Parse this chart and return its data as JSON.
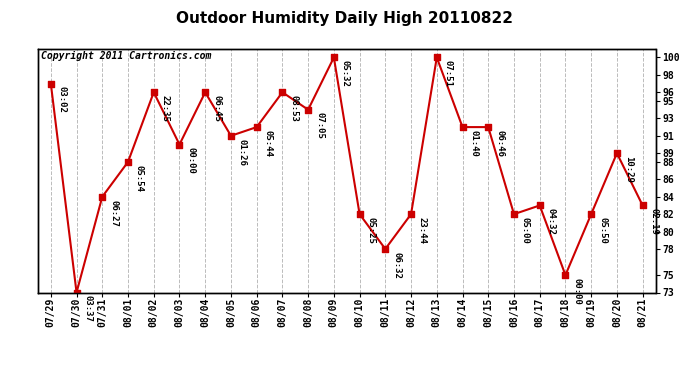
{
  "title": "Outdoor Humidity Daily High 20110822",
  "copyright": "Copyright 2011 Cartronics.com",
  "dates": [
    "07/29",
    "07/30",
    "07/31",
    "08/01",
    "08/02",
    "08/03",
    "08/04",
    "08/05",
    "08/06",
    "08/07",
    "08/08",
    "08/09",
    "08/10",
    "08/11",
    "08/12",
    "08/13",
    "08/14",
    "08/15",
    "08/16",
    "08/17",
    "08/18",
    "08/19",
    "08/20",
    "08/21"
  ],
  "values": [
    97,
    73,
    84,
    88,
    96,
    90,
    96,
    91,
    92,
    96,
    94,
    100,
    82,
    78,
    82,
    100,
    92,
    92,
    82,
    83,
    75,
    82,
    89,
    83
  ],
  "labels": [
    "03:02",
    "03:37",
    "06:27",
    "05:54",
    "22:35",
    "00:00",
    "06:45",
    "01:26",
    "05:44",
    "08:53",
    "07:05",
    "05:32",
    "05:25",
    "06:32",
    "23:44",
    "07:51",
    "01:40",
    "06:46",
    "05:00",
    "04:32",
    "00:00",
    "05:50",
    "10:29",
    "02:19"
  ],
  "ylim": [
    73,
    101
  ],
  "yticks_right": [
    73,
    75,
    78,
    80,
    82,
    84,
    86,
    88,
    89,
    91,
    93,
    95,
    96,
    98,
    100
  ],
  "line_color": "#cc0000",
  "marker_color": "#cc0000",
  "bg_color": "#ffffff",
  "grid_color": "#bbbbbb",
  "title_fontsize": 11,
  "label_fontsize": 6.5,
  "tick_fontsize": 7,
  "copyright_fontsize": 7
}
